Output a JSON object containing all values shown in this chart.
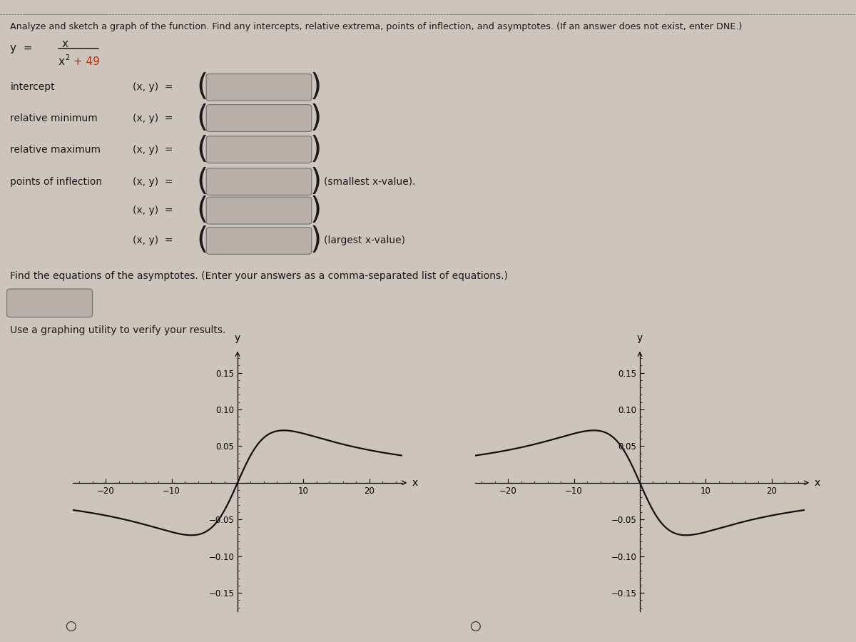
{
  "title_text": "Analyze and sketch a graph of the function. Find any intercepts, relative extrema, points of inflection, and asymptotes. (If an answer does not exist, enter DNE.)",
  "bg_color": "#cdc5bc",
  "text_color": "#1a1a1a",
  "field_bg": "#b8b0a8",
  "field_border": "#777777",
  "rows": [
    {
      "label": "intercept",
      "indent": false,
      "suffix": ""
    },
    {
      "label": "relative minimum",
      "indent": false,
      "suffix": ""
    },
    {
      "label": "relative maximum",
      "indent": false,
      "suffix": ""
    },
    {
      "label": "points of inflection",
      "indent": false,
      "suffix": "(smallest x-value)."
    },
    {
      "label": "",
      "indent": true,
      "suffix": ""
    },
    {
      "label": "",
      "indent": true,
      "suffix": "(largest x-value)"
    }
  ],
  "asymptote_label": "Find the equations of the asymptotes. (Enter your answers as a comma-separated list of equations.)",
  "verify_label": "Use a graphing utility to verify your results.",
  "line_color": "#111111",
  "line_width": 1.6
}
